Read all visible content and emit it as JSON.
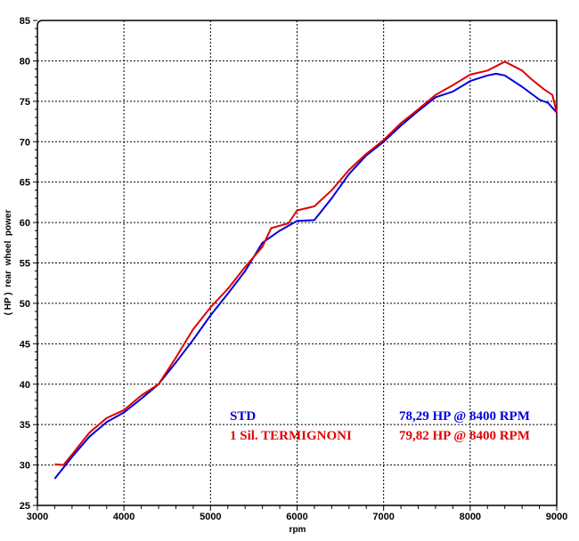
{
  "chart_data": {
    "type": "line",
    "xlabel": "rpm",
    "ylabel": "( HP )  rear  wheel  power",
    "xlim": [
      3000,
      9000
    ],
    "ylim": [
      25,
      85
    ],
    "x_ticks": [
      "3000",
      "4000",
      "5000",
      "6000",
      "7000",
      "8000",
      "9000"
    ],
    "y_ticks": [
      "25",
      "30",
      "35",
      "40",
      "45",
      "50",
      "55",
      "60",
      "65",
      "70",
      "75",
      "80",
      "85"
    ],
    "grid": true,
    "series": [
      {
        "name": "STD",
        "color": "#0000dd",
        "peak_label": "78,29 HP @ 8400 RPM",
        "x": [
          3200,
          3400,
          3600,
          3800,
          4000,
          4200,
          4400,
          4600,
          4800,
          5000,
          5200,
          5400,
          5600,
          5800,
          6000,
          6200,
          6400,
          6600,
          6800,
          7000,
          7200,
          7400,
          7600,
          7800,
          8000,
          8200,
          8300,
          8400,
          8600,
          8800,
          8900,
          9000
        ],
        "y": [
          28.3,
          31,
          33.5,
          35.3,
          36.5,
          38.2,
          40,
          42.7,
          45.5,
          48.5,
          51.2,
          54,
          57.5,
          59,
          60.2,
          60.3,
          63,
          66,
          68.3,
          70,
          72,
          73.8,
          75.5,
          76.2,
          77.5,
          78.2,
          78.4,
          78.2,
          76.8,
          75.2,
          74.8,
          73.6
        ]
      },
      {
        "name": "1 Sil. TERMIGNONI",
        "color": "#e00000",
        "peak_label": "79,82 HP @ 8400 RPM",
        "x": [
          3200,
          3300,
          3400,
          3600,
          3800,
          4000,
          4200,
          4400,
          4600,
          4800,
          5000,
          5200,
          5400,
          5600,
          5700,
          5900,
          6000,
          6200,
          6400,
          6600,
          6800,
          7000,
          7200,
          7400,
          7600,
          7800,
          8000,
          8200,
          8400,
          8600,
          8700,
          8850,
          8950,
          9000
        ],
        "y": [
          30.1,
          30,
          31.3,
          34,
          35.8,
          36.8,
          38.6,
          40,
          43.3,
          46.8,
          49.5,
          51.8,
          54.5,
          57,
          59.3,
          59.9,
          61.5,
          62,
          64,
          66.5,
          68.5,
          70.2,
          72.3,
          74,
          75.8,
          77,
          78.3,
          78.8,
          79.9,
          78.8,
          77.8,
          76.5,
          75.8,
          73.6
        ]
      }
    ]
  }
}
